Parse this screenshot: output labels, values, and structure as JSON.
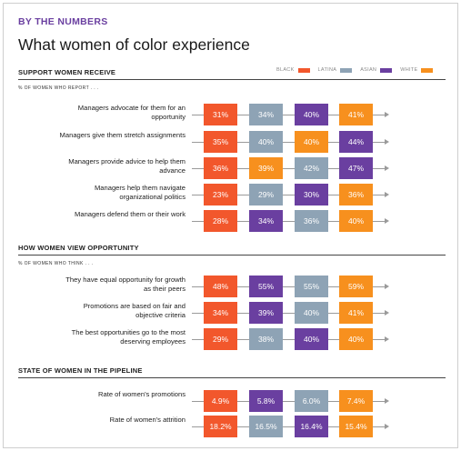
{
  "header": {
    "kicker": "BY THE NUMBERS",
    "title": "What women of color experience"
  },
  "legend": [
    {
      "label": "BLACK",
      "color": "#f2572c"
    },
    {
      "label": "LATINA",
      "color": "#8ea3b5"
    },
    {
      "label": "ASIAN",
      "color": "#6a3fa0"
    },
    {
      "label": "WHITE",
      "color": "#f7901e"
    }
  ],
  "chart_data": {
    "type": "table",
    "series_names": [
      "BLACK",
      "LATINA",
      "ASIAN",
      "WHITE"
    ],
    "sections": [
      {
        "title": "SUPPORT WOMEN RECEIVE",
        "subtitle": "% OF WOMEN WHO REPORT . . .",
        "rows": [
          {
            "label": "Managers advocate for them for an opportunity",
            "cells": [
              {
                "series": "BLACK",
                "text": "31%",
                "value": 31
              },
              {
                "series": "LATINA",
                "text": "34%",
                "value": 34
              },
              {
                "series": "ASIAN",
                "text": "40%",
                "value": 40
              },
              {
                "series": "WHITE",
                "text": "41%",
                "value": 41
              }
            ]
          },
          {
            "label": "Managers give them stretch assignments",
            "cells": [
              {
                "series": "BLACK",
                "text": "35%",
                "value": 35
              },
              {
                "series": "LATINA",
                "text": "40%",
                "value": 40
              },
              {
                "series": "WHITE",
                "text": "40%",
                "value": 40
              },
              {
                "series": "ASIAN",
                "text": "44%",
                "value": 44
              }
            ]
          },
          {
            "label": "Managers provide advice to help them advance",
            "cells": [
              {
                "series": "BLACK",
                "text": "36%",
                "value": 36
              },
              {
                "series": "WHITE",
                "text": "39%",
                "value": 39
              },
              {
                "series": "LATINA",
                "text": "42%",
                "value": 42
              },
              {
                "series": "ASIAN",
                "text": "47%",
                "value": 47
              }
            ]
          },
          {
            "label": "Managers help them navigate organizational politics",
            "cells": [
              {
                "series": "BLACK",
                "text": "23%",
                "value": 23
              },
              {
                "series": "LATINA",
                "text": "29%",
                "value": 29
              },
              {
                "series": "ASIAN",
                "text": "30%",
                "value": 30
              },
              {
                "series": "WHITE",
                "text": "36%",
                "value": 36
              }
            ]
          },
          {
            "label": "Managers defend them or their work",
            "cells": [
              {
                "series": "BLACK",
                "text": "28%",
                "value": 28
              },
              {
                "series": "ASIAN",
                "text": "34%",
                "value": 34
              },
              {
                "series": "LATINA",
                "text": "36%",
                "value": 36
              },
              {
                "series": "WHITE",
                "text": "40%",
                "value": 40
              }
            ]
          }
        ]
      },
      {
        "title": "HOW WOMEN VIEW OPPORTUNITY",
        "subtitle": "% OF WOMEN WHO THINK . . .",
        "rows": [
          {
            "label": "They have equal opportunity for growth as their peers",
            "cells": [
              {
                "series": "BLACK",
                "text": "48%",
                "value": 48
              },
              {
                "series": "ASIAN",
                "text": "55%",
                "value": 55
              },
              {
                "series": "LATINA",
                "text": "55%",
                "value": 55
              },
              {
                "series": "WHITE",
                "text": "59%",
                "value": 59
              }
            ]
          },
          {
            "label": "Promotions are based on fair and objective criteria",
            "cells": [
              {
                "series": "BLACK",
                "text": "34%",
                "value": 34
              },
              {
                "series": "ASIAN",
                "text": "39%",
                "value": 39
              },
              {
                "series": "LATINA",
                "text": "40%",
                "value": 40
              },
              {
                "series": "WHITE",
                "text": "41%",
                "value": 41
              }
            ]
          },
          {
            "label": "The best opportunities go to the most deserving employees",
            "cells": [
              {
                "series": "BLACK",
                "text": "29%",
                "value": 29
              },
              {
                "series": "LATINA",
                "text": "38%",
                "value": 38
              },
              {
                "series": "ASIAN",
                "text": "40%",
                "value": 40
              },
              {
                "series": "WHITE",
                "text": "40%",
                "value": 40
              }
            ]
          }
        ]
      },
      {
        "title": "STATE OF WOMEN IN THE PIPELINE",
        "subtitle": "",
        "rows": [
          {
            "label": "Rate of women's promotions",
            "cells": [
              {
                "series": "BLACK",
                "text": "4.9%",
                "value": 4.9
              },
              {
                "series": "ASIAN",
                "text": "5.8%",
                "value": 5.8
              },
              {
                "series": "LATINA",
                "text": "6.0%",
                "value": 6.0
              },
              {
                "series": "WHITE",
                "text": "7.4%",
                "value": 7.4
              }
            ]
          },
          {
            "label": "Rate of women's attrition",
            "cells": [
              {
                "series": "BLACK",
                "text": "18.2%",
                "value": 18.2
              },
              {
                "series": "LATINA",
                "text": "16.5%",
                "value": 16.5
              },
              {
                "series": "ASIAN",
                "text": "16.4%",
                "value": 16.4
              },
              {
                "series": "WHITE",
                "text": "15.4%",
                "value": 15.4
              }
            ]
          }
        ]
      }
    ]
  }
}
